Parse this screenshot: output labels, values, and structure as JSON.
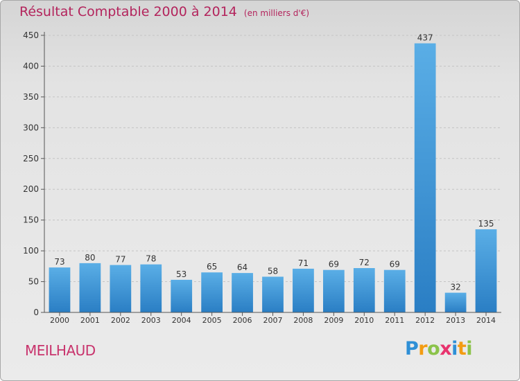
{
  "title": {
    "main": "Résultat Comptable 2000 à 2014",
    "unit": "(en milliers d'€)"
  },
  "commune": "MEILHAUD",
  "logo": {
    "letters": [
      "P",
      "r",
      "o",
      "x",
      "i",
      "t",
      "i"
    ],
    "colors": [
      "#2e8fd6",
      "#f39c12",
      "#8bc34a",
      "#e8336e",
      "#2e8fd6",
      "#f39c12",
      "#8bc34a"
    ]
  },
  "colors": {
    "bar_light": "#5aaee6",
    "bar_dark": "#2a7ec4",
    "axis": "#555555",
    "grid": "#c4c4c4",
    "title": "#b3245c"
  },
  "chart_data": {
    "type": "bar",
    "title": "Résultat Comptable 2000 à 2014",
    "subtitle": "(en milliers d'€)",
    "xlabel": "",
    "ylabel": "",
    "categories": [
      "2000",
      "2001",
      "2002",
      "2003",
      "2004",
      "2005",
      "2006",
      "2007",
      "2008",
      "2009",
      "2010",
      "2011",
      "2012",
      "2013",
      "2014"
    ],
    "values": [
      73,
      80,
      77,
      78,
      53,
      65,
      64,
      58,
      71,
      69,
      72,
      69,
      437,
      32,
      135
    ],
    "ylim": [
      0,
      450
    ],
    "yticks": [
      0,
      50,
      100,
      150,
      200,
      250,
      300,
      350,
      400,
      450
    ],
    "grid": true,
    "legend": "none"
  }
}
